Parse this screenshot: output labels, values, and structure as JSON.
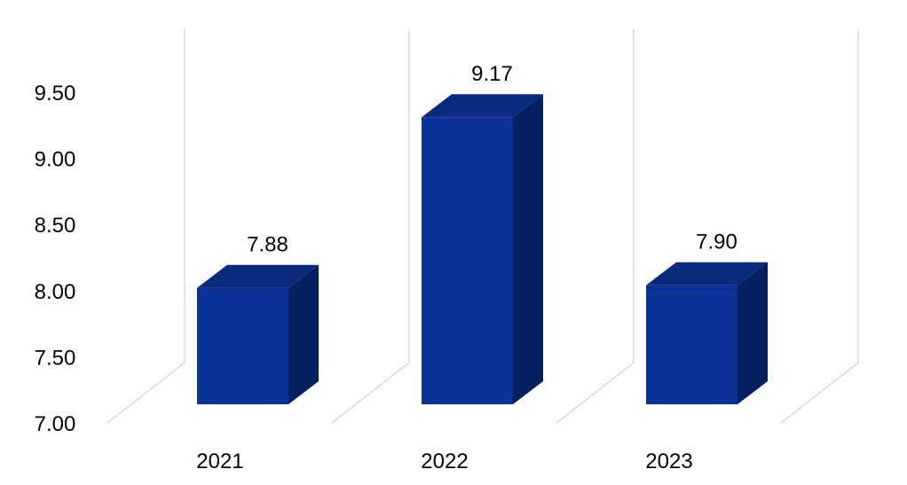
{
  "chart_data": {
    "type": "bar",
    "style": "3d-column",
    "categories": [
      "2021",
      "2022",
      "2023"
    ],
    "values": [
      7.88,
      9.17,
      7.9
    ],
    "data_labels": [
      "7.88",
      "9.17",
      "7.90"
    ],
    "ylim": [
      7.0,
      9.5
    ],
    "yticks": [
      "7.00",
      "7.50",
      "8.00",
      "8.50",
      "9.00",
      "9.50"
    ],
    "title": "",
    "xlabel": "",
    "ylabel": "",
    "grid": "vertical",
    "legend": "none",
    "colors": {
      "front": "#0a3296",
      "top": "#0a2a80",
      "side": "#05205e",
      "grid": "#d9d9d9"
    }
  }
}
